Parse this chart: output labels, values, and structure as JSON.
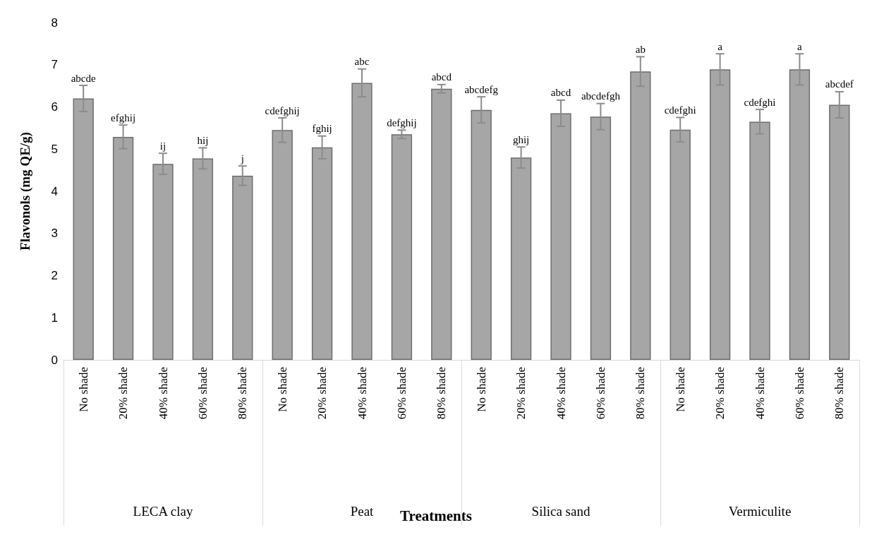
{
  "chart_data": {
    "type": "bar",
    "ylabel": "Flavonols (mg QE/g)",
    "categories": [
      "No shade",
      "20% shade",
      "40% shade",
      "60% shade",
      "80% shade",
      "No shade",
      "20% shade",
      "40% shade",
      "60% shade",
      "80% shade",
      "No shade",
      "20% shade",
      "40% shade",
      "60% shade",
      "80% shade",
      "No shade",
      "20% shade",
      "40% shade",
      "60% shade",
      "80% shade"
    ],
    "annotations": [
      "Treatments",
      "LECA clay",
      "Peat",
      "Silica sand",
      "Vermiculite"
    ],
    "values": [
      6.2,
      5.29,
      4.65,
      4.78,
      4.37,
      5.45,
      5.04,
      6.57,
      5.35,
      6.43,
      5.93,
      4.8,
      5.85,
      5.77,
      6.84,
      5.46,
      6.89,
      5.65,
      6.89,
      6.05
    ],
    "errors": [
      0.31,
      0.28,
      0.25,
      0.25,
      0.23,
      0.29,
      0.27,
      0.33,
      0.1,
      0.1,
      0.31,
      0.25,
      0.31,
      0.31,
      0.35,
      0.29,
      0.37,
      0.29,
      0.37,
      0.31
    ],
    "value_labels": [
      "abcde",
      "efghij",
      "ij",
      "hij",
      "j",
      "cdefghij",
      "fghij",
      "abc",
      "defghij",
      "abcd",
      "abcdefg",
      "ghij",
      "abcd",
      "abcdefgh",
      "ab",
      "cdefghi",
      "a",
      "cdefghi",
      "a",
      "abcdef"
    ],
    "color": "#a6a6a6",
    "ylim": [
      0,
      8
    ],
    "yticks": [
      0,
      1,
      2,
      3,
      4,
      5,
      6,
      7,
      8
    ],
    "grid": false
  }
}
